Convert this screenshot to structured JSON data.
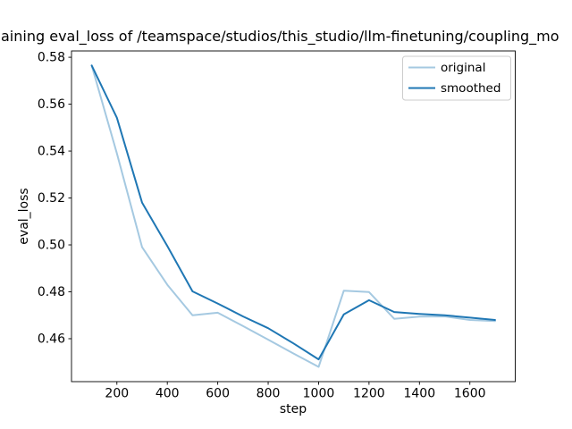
{
  "chart_data": {
    "type": "line",
    "title_visible": "aining eval_loss of /teamspace/studios/this_studio/llm-finetuning/coupling_mo",
    "xlabel": "step",
    "ylabel": "eval_loss",
    "x": [
      100,
      200,
      300,
      400,
      500,
      600,
      700,
      800,
      900,
      1000,
      1100,
      1200,
      1300,
      1400,
      1500,
      1600,
      1700
    ],
    "series": [
      {
        "name": "original",
        "color": "#a5c9e1",
        "values": [
          0.5765,
          0.539,
          0.499,
          0.483,
          0.47,
          0.4711,
          0.4654,
          0.4596,
          0.4537,
          0.448,
          0.4805,
          0.4799,
          0.4685,
          0.4694,
          0.4695,
          0.468,
          0.4675
        ]
      },
      {
        "name": "smoothed",
        "color": "#1f77b4",
        "values": [
          0.5765,
          0.5542,
          0.518,
          0.4995,
          0.4802,
          0.475,
          0.4695,
          0.4645,
          0.458,
          0.4512,
          0.4704,
          0.4764,
          0.4714,
          0.4706,
          0.47,
          0.469,
          0.468
        ]
      }
    ],
    "xlim": [
      20,
      1780
    ],
    "ylim": [
      0.4417,
      0.5827
    ],
    "xticks": [
      200,
      400,
      600,
      800,
      1000,
      1200,
      1400,
      1600
    ],
    "yticks": [
      0.46,
      0.48,
      0.5,
      0.52,
      0.54,
      0.56,
      0.58
    ],
    "legend": {
      "position": "upper right",
      "entries": [
        "original",
        "smoothed"
      ]
    },
    "grid": false,
    "background": "#ffffff",
    "spine_color": "#000000",
    "text_color": "#000000"
  }
}
